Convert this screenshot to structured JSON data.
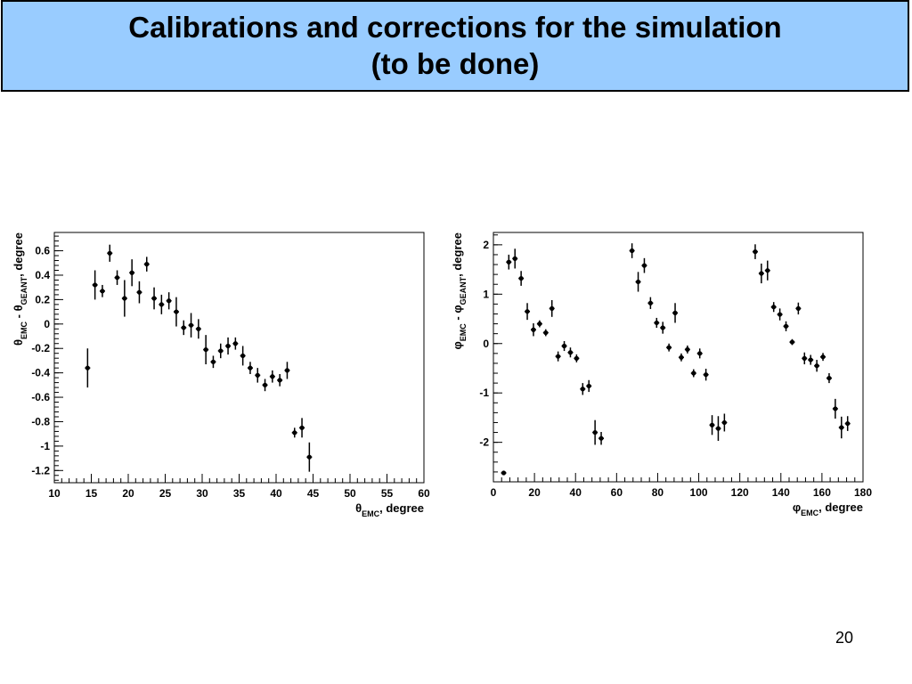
{
  "slide": {
    "title_line1": "Calibrations and corrections for the simulation",
    "title_line2": "(to be done)",
    "page_number": "20"
  },
  "chart_data": [
    {
      "type": "scatter",
      "error_bars": true,
      "xlabel": "θ_EMC, degree",
      "ylabel": "θ_EMC - θ_GEANT, degree",
      "xlim": [
        10,
        60
      ],
      "ylim": [
        -1.3,
        0.75
      ],
      "xticks": [
        10,
        15,
        20,
        25,
        30,
        35,
        40,
        45,
        50,
        55,
        60
      ],
      "yticks": [
        -1.2,
        -1,
        -0.8,
        -0.6,
        -0.4,
        -0.2,
        0,
        0.2,
        0.4,
        0.6
      ],
      "ytick_labels": [
        "-1.2",
        "-1",
        "-0.8",
        "-0.6",
        "-0.4",
        "-0.2",
        "0",
        "0.2",
        "0.4",
        "0.6"
      ],
      "points": [
        {
          "x": 14.5,
          "y": -0.36,
          "err": 0.16
        },
        {
          "x": 15.5,
          "y": 0.32,
          "err": 0.12
        },
        {
          "x": 16.5,
          "y": 0.27,
          "err": 0.05
        },
        {
          "x": 17.5,
          "y": 0.58,
          "err": 0.07
        },
        {
          "x": 18.5,
          "y": 0.38,
          "err": 0.06
        },
        {
          "x": 19.5,
          "y": 0.21,
          "err": 0.15
        },
        {
          "x": 20.5,
          "y": 0.42,
          "err": 0.11
        },
        {
          "x": 21.5,
          "y": 0.26,
          "err": 0.09
        },
        {
          "x": 22.5,
          "y": 0.49,
          "err": 0.06
        },
        {
          "x": 23.5,
          "y": 0.21,
          "err": 0.09
        },
        {
          "x": 24.5,
          "y": 0.16,
          "err": 0.08
        },
        {
          "x": 25.5,
          "y": 0.19,
          "err": 0.07
        },
        {
          "x": 26.5,
          "y": 0.1,
          "err": 0.12
        },
        {
          "x": 27.5,
          "y": -0.03,
          "err": 0.06
        },
        {
          "x": 28.5,
          "y": -0.01,
          "err": 0.1
        },
        {
          "x": 29.5,
          "y": -0.04,
          "err": 0.08
        },
        {
          "x": 30.5,
          "y": -0.21,
          "err": 0.12
        },
        {
          "x": 31.5,
          "y": -0.31,
          "err": 0.05
        },
        {
          "x": 32.5,
          "y": -0.22,
          "err": 0.06
        },
        {
          "x": 33.5,
          "y": -0.18,
          "err": 0.07
        },
        {
          "x": 34.5,
          "y": -0.16,
          "err": 0.05
        },
        {
          "x": 35.5,
          "y": -0.26,
          "err": 0.08
        },
        {
          "x": 36.5,
          "y": -0.36,
          "err": 0.05
        },
        {
          "x": 37.5,
          "y": -0.42,
          "err": 0.06
        },
        {
          "x": 38.5,
          "y": -0.5,
          "err": 0.05
        },
        {
          "x": 39.5,
          "y": -0.43,
          "err": 0.05
        },
        {
          "x": 40.5,
          "y": -0.46,
          "err": 0.05
        },
        {
          "x": 41.5,
          "y": -0.38,
          "err": 0.07
        },
        {
          "x": 42.5,
          "y": -0.89,
          "err": 0.04
        },
        {
          "x": 43.5,
          "y": -0.85,
          "err": 0.08
        },
        {
          "x": 44.5,
          "y": -1.09,
          "err": 0.12
        }
      ]
    },
    {
      "type": "scatter",
      "error_bars": true,
      "xlabel": "φ_EMC, degree",
      "ylabel": "φ_EMC - φ_GEANT, degree",
      "xlim": [
        0,
        180
      ],
      "ylim": [
        -2.8,
        2.25
      ],
      "xticks": [
        0,
        20,
        40,
        60,
        80,
        100,
        120,
        140,
        160,
        180
      ],
      "yticks": [
        -2,
        -1,
        0,
        1,
        2
      ],
      "ytick_labels": [
        "-2",
        "-1",
        "0",
        "1",
        "2"
      ],
      "points": [
        {
          "x": 5,
          "y": -2.62,
          "err": 0.03
        },
        {
          "x": 7.5,
          "y": 1.65,
          "err": 0.15
        },
        {
          "x": 10.5,
          "y": 1.72,
          "err": 0.2
        },
        {
          "x": 13.5,
          "y": 1.32,
          "err": 0.15
        },
        {
          "x": 16.5,
          "y": 0.65,
          "err": 0.17
        },
        {
          "x": 19.5,
          "y": 0.28,
          "err": 0.13
        },
        {
          "x": 22.5,
          "y": 0.4,
          "err": 0.07
        },
        {
          "x": 25.5,
          "y": 0.22,
          "err": 0.07
        },
        {
          "x": 28.5,
          "y": 0.71,
          "err": 0.17
        },
        {
          "x": 31.5,
          "y": -0.26,
          "err": 0.1
        },
        {
          "x": 34.5,
          "y": -0.05,
          "err": 0.1
        },
        {
          "x": 37.5,
          "y": -0.18,
          "err": 0.1
        },
        {
          "x": 40.5,
          "y": -0.3,
          "err": 0.08
        },
        {
          "x": 43.5,
          "y": -0.92,
          "err": 0.12
        },
        {
          "x": 46.5,
          "y": -0.86,
          "err": 0.12
        },
        {
          "x": 49.5,
          "y": -1.8,
          "err": 0.25
        },
        {
          "x": 52.5,
          "y": -1.92,
          "err": 0.13
        },
        {
          "x": 67.5,
          "y": 1.88,
          "err": 0.15
        },
        {
          "x": 70.5,
          "y": 1.25,
          "err": 0.2
        },
        {
          "x": 73.5,
          "y": 1.58,
          "err": 0.15
        },
        {
          "x": 76.5,
          "y": 0.82,
          "err": 0.12
        },
        {
          "x": 79.5,
          "y": 0.42,
          "err": 0.1
        },
        {
          "x": 82.5,
          "y": 0.32,
          "err": 0.12
        },
        {
          "x": 85.5,
          "y": -0.08,
          "err": 0.08
        },
        {
          "x": 88.5,
          "y": 0.62,
          "err": 0.2
        },
        {
          "x": 91.5,
          "y": -0.28,
          "err": 0.08
        },
        {
          "x": 94.5,
          "y": -0.12,
          "err": 0.08
        },
        {
          "x": 97.5,
          "y": -0.6,
          "err": 0.08
        },
        {
          "x": 100.5,
          "y": -0.2,
          "err": 0.1
        },
        {
          "x": 103.5,
          "y": -0.63,
          "err": 0.12
        },
        {
          "x": 106.5,
          "y": -1.65,
          "err": 0.2
        },
        {
          "x": 109.5,
          "y": -1.72,
          "err": 0.25
        },
        {
          "x": 112.5,
          "y": -1.6,
          "err": 0.18
        },
        {
          "x": 127.5,
          "y": 1.86,
          "err": 0.15
        },
        {
          "x": 130.5,
          "y": 1.42,
          "err": 0.2
        },
        {
          "x": 133.5,
          "y": 1.48,
          "err": 0.2
        },
        {
          "x": 136.5,
          "y": 0.74,
          "err": 0.1
        },
        {
          "x": 139.5,
          "y": 0.59,
          "err": 0.12
        },
        {
          "x": 142.5,
          "y": 0.35,
          "err": 0.1
        },
        {
          "x": 145.5,
          "y": 0.03,
          "err": 0.06
        },
        {
          "x": 148.5,
          "y": 0.71,
          "err": 0.12
        },
        {
          "x": 151.5,
          "y": -0.3,
          "err": 0.12
        },
        {
          "x": 154.5,
          "y": -0.33,
          "err": 0.1
        },
        {
          "x": 157.5,
          "y": -0.45,
          "err": 0.12
        },
        {
          "x": 160.5,
          "y": -0.27,
          "err": 0.08
        },
        {
          "x": 163.5,
          "y": -0.7,
          "err": 0.1
        },
        {
          "x": 166.5,
          "y": -1.32,
          "err": 0.2
        },
        {
          "x": 169.5,
          "y": -1.7,
          "err": 0.22
        },
        {
          "x": 172.5,
          "y": -1.62,
          "err": 0.15
        }
      ]
    }
  ]
}
